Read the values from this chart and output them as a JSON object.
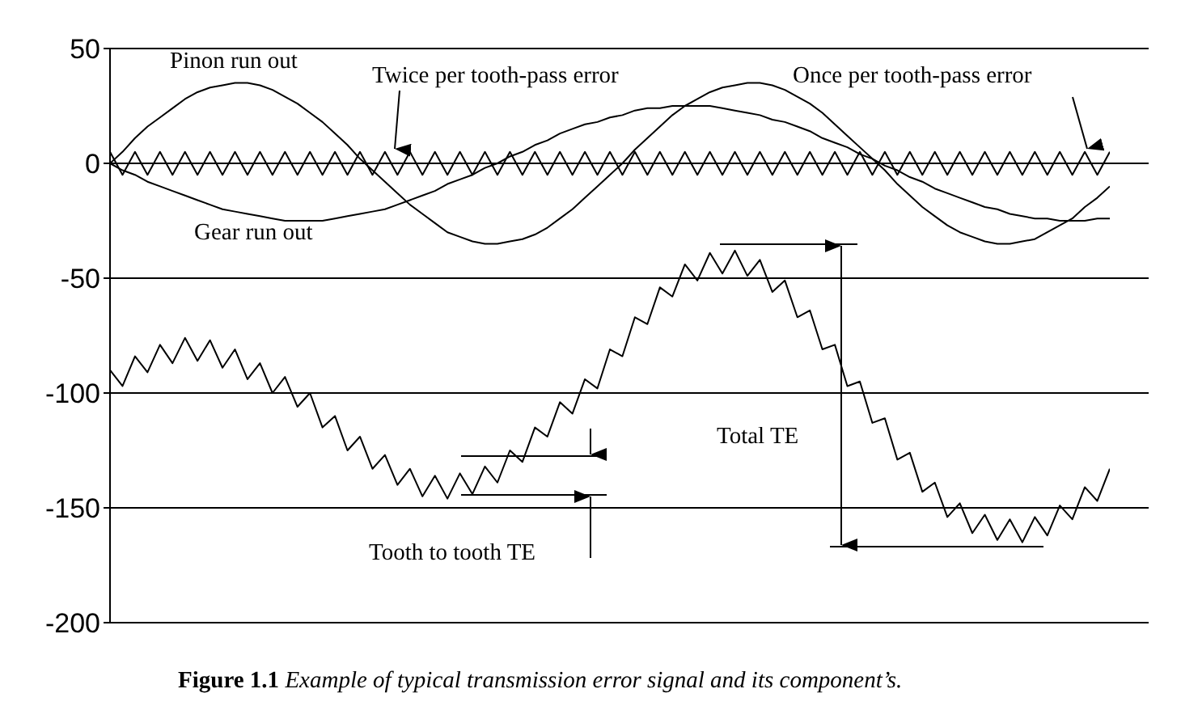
{
  "chart_data": {
    "type": "line",
    "categories": [
      null,
      null,
      null,
      null,
      null,
      null,
      null,
      null,
      null,
      null,
      null,
      null,
      null,
      null,
      null,
      null,
      null,
      null,
      null,
      null,
      null,
      null,
      null,
      null,
      null,
      null,
      null,
      null,
      null,
      null,
      null,
      null,
      null,
      null,
      null,
      null,
      null,
      null,
      null,
      null,
      null,
      null,
      null,
      null,
      null,
      null,
      null,
      null,
      null,
      null,
      null,
      null,
      null,
      null,
      null,
      null,
      null,
      null,
      null,
      null,
      null,
      null,
      null,
      null,
      null,
      null,
      null,
      null,
      null,
      null,
      null,
      null,
      null,
      null,
      null,
      null,
      null,
      null,
      null,
      null,
      null
    ],
    "ylim": [
      -200,
      50
    ],
    "yticks": [
      -200,
      -150,
      -100,
      -50,
      0,
      50
    ],
    "grid": "y",
    "legend": false,
    "marker": "none",
    "line_style": "solid",
    "tick_labels": "y",
    "series": [
      {
        "color": "#000000",
        "values": [
          0,
          5,
          11,
          16,
          20,
          24,
          28,
          31,
          33,
          34,
          35,
          35,
          34,
          32,
          29,
          26,
          22,
          18,
          13,
          8,
          2,
          -3,
          -8,
          -13,
          -18,
          -22,
          -26,
          -30,
          -32,
          -34,
          -35,
          -35,
          -34,
          -33,
          -31,
          -28,
          -24,
          -20,
          -15,
          -10,
          -5,
          0,
          6,
          11,
          16,
          21,
          25,
          28,
          31,
          33,
          34,
          35,
          35,
          34,
          32,
          29,
          26,
          22,
          17,
          12,
          7,
          2,
          -3,
          -9,
          -14,
          -19,
          -23,
          -27,
          -30,
          -32,
          -34,
          -35,
          -35,
          -34,
          -33,
          -30,
          -27,
          -24,
          -19,
          -15,
          -10
        ]
      },
      {
        "color": "#000000",
        "values": [
          0,
          -3,
          -5,
          -8,
          -10,
          -12,
          -14,
          -16,
          -18,
          -20,
          -21,
          -22,
          -23,
          -24,
          -25,
          -25,
          -25,
          -25,
          -24,
          -23,
          -22,
          -21,
          -20,
          -18,
          -16,
          -14,
          -12,
          -9,
          -7,
          -5,
          -2,
          0,
          3,
          5,
          8,
          10,
          13,
          15,
          17,
          18,
          20,
          21,
          23,
          24,
          24,
          25,
          25,
          25,
          25,
          24,
          23,
          22,
          21,
          19,
          18,
          16,
          14,
          11,
          9,
          7,
          4,
          2,
          -1,
          -3,
          -6,
          -8,
          -11,
          -13,
          -15,
          -17,
          -19,
          -20,
          -22,
          -23,
          -24,
          -24,
          -25,
          -25,
          -25,
          -24,
          -24
        ]
      },
      {
        "color": "#000000",
        "values": [
          5,
          -5,
          5,
          -5,
          5,
          -5,
          5,
          -5,
          5,
          -5,
          5,
          -5,
          5,
          -5,
          5,
          -5,
          5,
          -5,
          5,
          -5,
          5,
          -5,
          5,
          -5,
          5,
          -5,
          5,
          -5,
          5,
          -5,
          5,
          -5,
          5,
          -5,
          5,
          -5,
          5,
          -5,
          5,
          -5,
          5,
          -5,
          5,
          -5,
          5,
          -5,
          5,
          -5,
          5,
          -5,
          5,
          -5,
          5,
          -5,
          5,
          -5,
          5,
          -5,
          5,
          -5,
          5,
          -5,
          5,
          -5,
          5,
          -5,
          5,
          -5,
          5,
          -5,
          5,
          -5,
          5,
          -5,
          5,
          -5,
          5,
          -5,
          5,
          -5,
          5
        ]
      },
      {
        "color": "#000000",
        "values": [
          -90,
          -97,
          -84,
          -91,
          -79,
          -87,
          -76,
          -86,
          -77,
          -89,
          -81,
          -94,
          -87,
          -100,
          -93,
          -106,
          -100,
          -115,
          -110,
          -125,
          -119,
          -133,
          -127,
          -140,
          -133,
          -145,
          -136,
          -146,
          -135,
          -144,
          -132,
          -139,
          -125,
          -130,
          -115,
          -119,
          -104,
          -109,
          -94,
          -98,
          -81,
          -84,
          -67,
          -70,
          -54,
          -58,
          -44,
          -51,
          -39,
          -48,
          -38,
          -49,
          -42,
          -56,
          -51,
          -67,
          -64,
          -81,
          -79,
          -97,
          -95,
          -113,
          -111,
          -129,
          -126,
          -143,
          -139,
          -154,
          -148,
          -161,
          -153,
          -164,
          -155,
          -165,
          -154,
          -162,
          -149,
          -155,
          -141,
          -147,
          -133
        ]
      }
    ],
    "annotations": [
      "Pinon run out",
      "Twice per tooth-pass error",
      "Once per tooth-pass error",
      "Gear run out",
      "Total TE",
      "Tooth to tooth TE",
      "Figure 1.1 Example of typical transmission error signal and its component’s."
    ]
  }
}
